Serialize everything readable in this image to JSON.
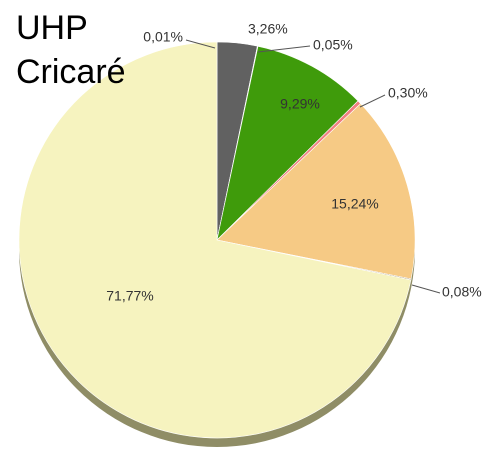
{
  "chart_data": {
    "type": "pie",
    "title": "UHP Cricaré",
    "values": [
      0.01,
      3.26,
      0.05,
      9.29,
      0.3,
      15.24,
      0.08,
      71.77
    ],
    "value_labels": [
      "0,01%",
      "3,26%",
      "0,05%",
      "9,29%",
      "0,30%",
      "15,24%",
      "0,08%",
      "71,77%"
    ],
    "colors": [
      "#3a3a3a",
      "#616161",
      "#2f6fb0",
      "#3f9b0b",
      "#f08080",
      "#f6ca85",
      "#8a6d3b",
      "#f6f3bf"
    ]
  }
}
